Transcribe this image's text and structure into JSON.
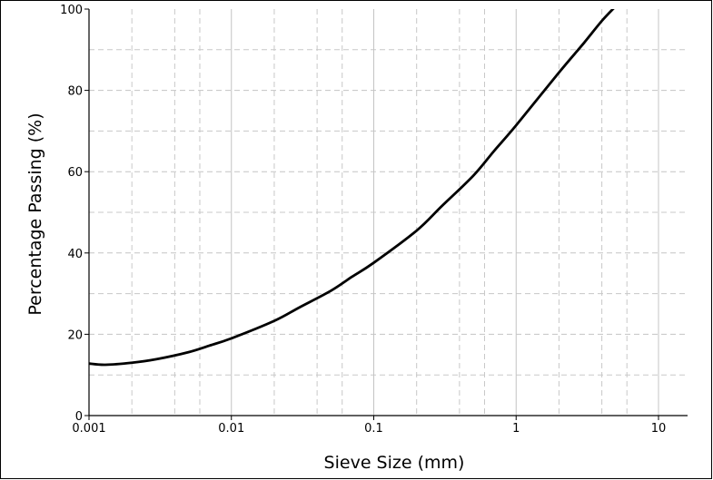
{
  "chart_data": {
    "type": "line",
    "title": "",
    "xlabel": "Sieve Size (mm)",
    "ylabel": "Percentage Passing (%)",
    "x_scale": "log",
    "xlim": [
      0.001,
      16
    ],
    "ylim": [
      0,
      100
    ],
    "x_ticks": [
      {
        "value": 0.001,
        "label": "0.001"
      },
      {
        "value": 0.01,
        "label": "0.01"
      },
      {
        "value": 0.1,
        "label": "0.1"
      },
      {
        "value": 1,
        "label": "1"
      },
      {
        "value": 10,
        "label": "10"
      }
    ],
    "y_ticks": [
      {
        "value": 0,
        "label": "0"
      },
      {
        "value": 20,
        "label": "20"
      },
      {
        "value": 40,
        "label": "40"
      },
      {
        "value": 60,
        "label": "60"
      },
      {
        "value": 80,
        "label": "80"
      },
      {
        "value": 100,
        "label": "100"
      }
    ],
    "grid": true,
    "series": [
      {
        "color": "#000000",
        "x": [
          0.001,
          0.0013,
          0.002,
          0.003,
          0.005,
          0.007,
          0.01,
          0.02,
          0.03,
          0.05,
          0.07,
          0.1,
          0.2,
          0.3,
          0.5,
          0.7,
          1,
          2,
          3,
          4,
          5.1
        ],
        "values": [
          12.8,
          12.5,
          13.0,
          13.9,
          15.6,
          17.2,
          19.0,
          23.3,
          26.6,
          30.7,
          34.1,
          37.6,
          45.5,
          51.5,
          59.0,
          65.1,
          71.4,
          84.4,
          91.7,
          97.1,
          101
        ]
      }
    ]
  }
}
